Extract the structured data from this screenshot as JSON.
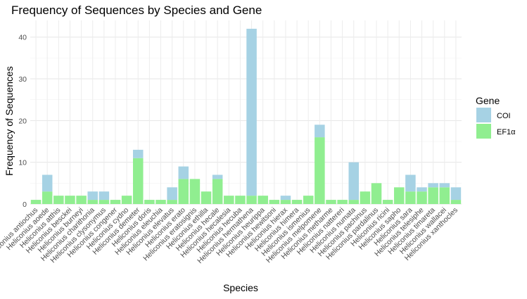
{
  "chart_data": {
    "type": "bar",
    "stacked": true,
    "title": "Frequency of Sequences by Species and Gene",
    "xlabel": "Species",
    "ylabel": "Frequency of Sequences",
    "ylim": [
      0,
      44
    ],
    "yticks": [
      0,
      10,
      20,
      30,
      40
    ],
    "grid": true,
    "legend": {
      "title": "Gene",
      "position": "right"
    },
    "categories": [
      "Heliconius antiochus",
      "Heliconius aoede",
      "Heliconius atthis",
      "Heliconius besckei",
      "Heliconius burneyi",
      "Heliconius charithonia",
      "Heliconius clysonymus",
      "Heliconius congener",
      "Heliconius cydno",
      "Heliconius demeter",
      "Heliconius doris",
      "Heliconius eleuchia",
      "Heliconius elevatus",
      "Heliconius erato",
      "Heliconius eratosignis",
      "Heliconius ethilla",
      "Heliconius hecale",
      "Heliconius hecalesia",
      "Heliconius hecuba",
      "Heliconius hermathena",
      "Heliconius heurippa",
      "Heliconius hewitsoni",
      "Heliconius hierax",
      "Heliconius himera",
      "Heliconius ismenius",
      "Heliconius melpomene",
      "Heliconius metharme",
      "Heliconius nattereri",
      "Heliconius numata",
      "Heliconius pachinus",
      "Heliconius pardalinus",
      "Heliconius ricini",
      "Heliconius sapho",
      "Heliconius sara",
      "Heliconius telesiphe",
      "Heliconius timareta",
      "Heliconius wallacei",
      "Heliconius xanthocles"
    ],
    "series": [
      {
        "name": "EF1α",
        "color": "#90ee90",
        "values": [
          1,
          3,
          2,
          2,
          2,
          1,
          1,
          1,
          2,
          11,
          1,
          1,
          1,
          6,
          6,
          3,
          6,
          2,
          2,
          2,
          2,
          1,
          1,
          1,
          2,
          16,
          1,
          1,
          1,
          3,
          5,
          1,
          4,
          3,
          3,
          4,
          4,
          1
        ]
      },
      {
        "name": "COI",
        "color": "#a6d2e4",
        "values": [
          0,
          4,
          0,
          0,
          0,
          2,
          2,
          0,
          0,
          2,
          0,
          0,
          3,
          3,
          0,
          0,
          1,
          0,
          0,
          40,
          0,
          0,
          1,
          0,
          0,
          3,
          0,
          0,
          9,
          0,
          0,
          0,
          0,
          4,
          1,
          1,
          1,
          3
        ]
      }
    ]
  }
}
